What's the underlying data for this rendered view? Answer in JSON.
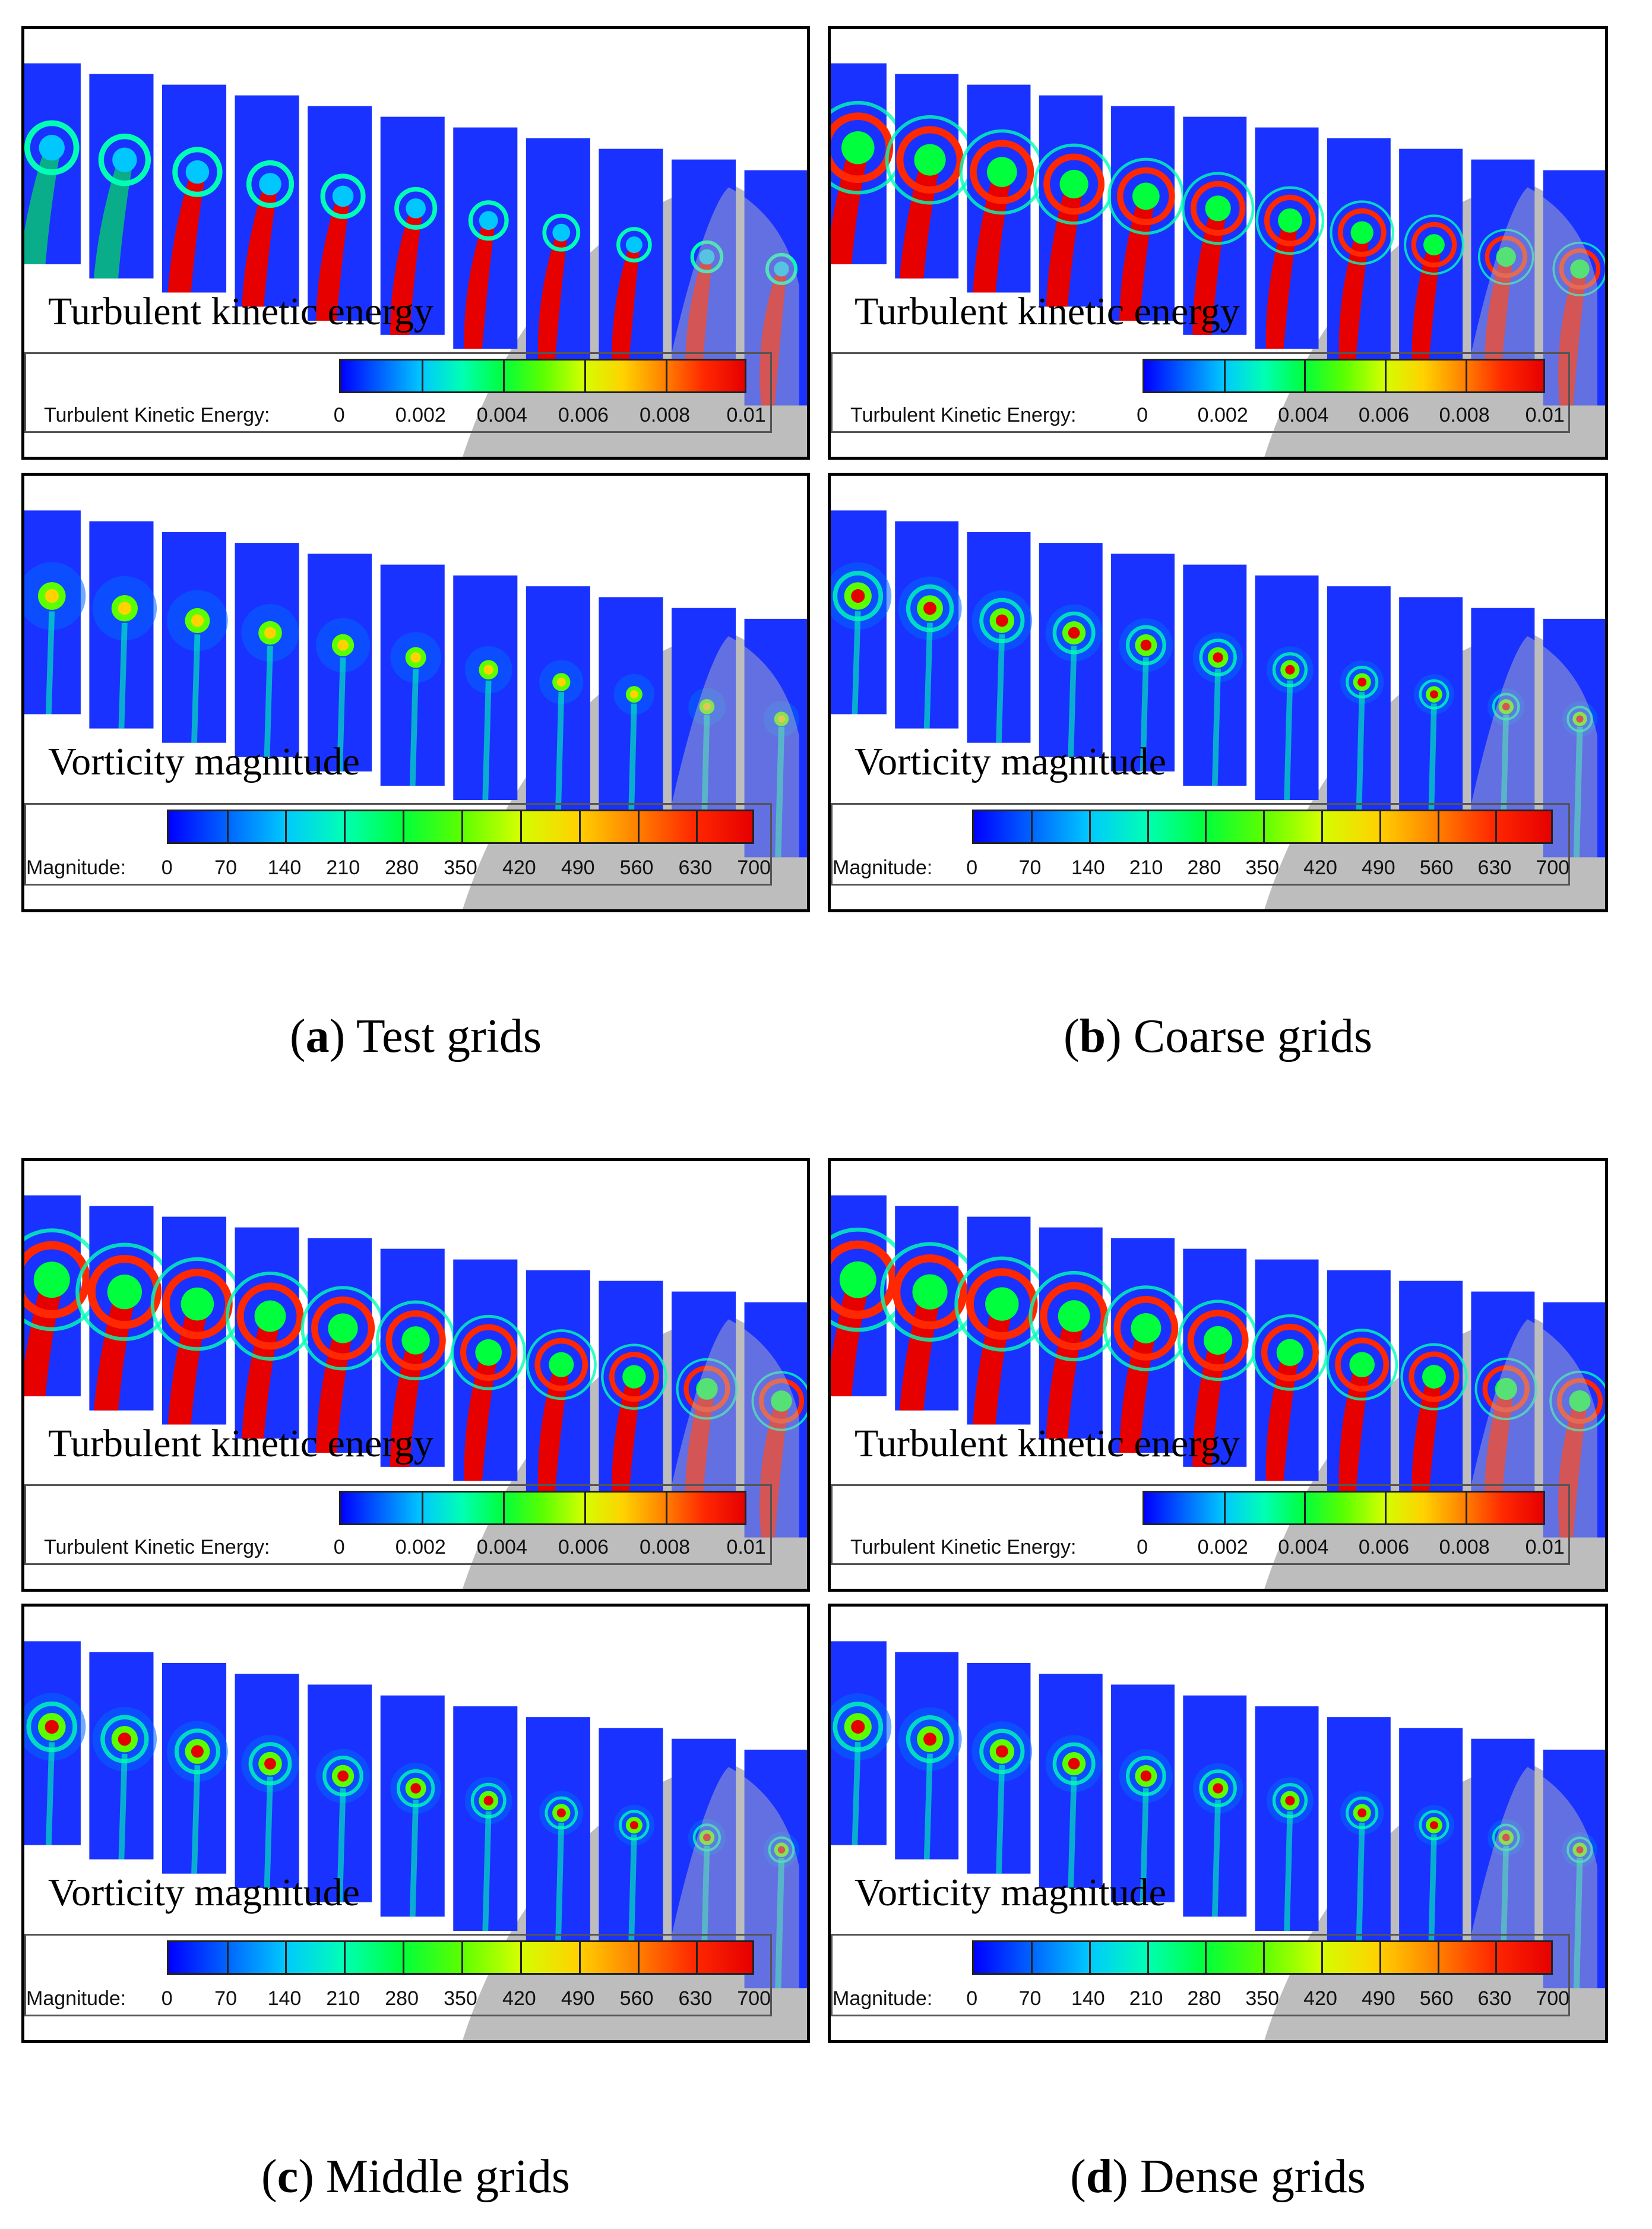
{
  "figure": {
    "captions": [
      {
        "letter": "a",
        "text": " Test grids"
      },
      {
        "letter": "b",
        "text": " Coarse grids"
      },
      {
        "letter": "c",
        "text": " Middle grids"
      },
      {
        "letter": "d",
        "text": " Dense grids"
      }
    ],
    "tke": {
      "label": "Turbulent kinetic energy",
      "legend_title": "Turbulent Kinetic Energy:",
      "ticks": [
        "0",
        "0.002",
        "0.004",
        "0.006",
        "0.008",
        "0.01"
      ]
    },
    "vort": {
      "label": "Vorticity magnitude",
      "legend_title": "Magnitude:",
      "ticks": [
        "0",
        "70",
        "140",
        "210",
        "280",
        "350",
        "420",
        "490",
        "560",
        "630",
        "700"
      ]
    },
    "colors": {
      "field_background": "#1a32ff",
      "hull": "#bdbdbd",
      "colormap": [
        "#0000ff",
        "#0064ff",
        "#00c8ff",
        "#00ffb4",
        "#00ff3c",
        "#5aff00",
        "#d2ff00",
        "#ffd200",
        "#ff8200",
        "#ff2800",
        "#e60000"
      ]
    },
    "grid_levels": [
      {
        "name": "test",
        "tke_intensity": 0.35,
        "vort_intensity": 0.3
      },
      {
        "name": "coarse",
        "tke_intensity": 0.75,
        "vort_intensity": 0.55
      },
      {
        "name": "middle",
        "tke_intensity": 0.9,
        "vort_intensity": 0.75
      },
      {
        "name": "dense",
        "tke_intensity": 0.95,
        "vort_intensity": 0.8
      }
    ]
  }
}
